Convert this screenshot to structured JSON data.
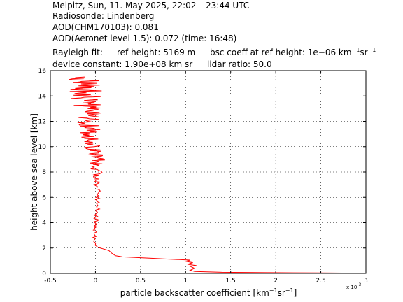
{
  "header": {
    "line1": "Melpitz, Sun, 11. May 2025, 22:02 – 23:44 UTC",
    "line2": "Radiosonde: Lindenberg",
    "line3": "AOD(CHM170103): 0.081",
    "line4": "AOD(Aeronet level 1.5): 0.072   (time: 16:48)",
    "rayleigh_label": "Rayleigh fit:",
    "ref_height": "ref height: 5169 m",
    "bsc_coeff_prefix": "bsc coeff at ref height: 1e−06 km",
    "unit_exp1": "−1",
    "unit_sr": "sr",
    "unit_exp2": "−1",
    "device_constant": "device constant: 1.90e+08 km sr",
    "lidar_ratio": "lidar ratio: 50.0"
  },
  "chart_data": {
    "type": "line",
    "xlabel_prefix": "particle backscatter coefficient [km",
    "xlabel_exp1": "−1",
    "xlabel_mid": "sr",
    "xlabel_exp2": "−1",
    "xlabel_suffix": "]",
    "ylabel": "height above sea level [km]",
    "x_multiplier_label": "x 10",
    "x_multiplier_exp": "-3",
    "xlim": [
      -0.5,
      3
    ],
    "ylim": [
      0,
      16
    ],
    "xticks": [
      -0.5,
      0,
      0.5,
      1,
      1.5,
      2,
      2.5,
      3
    ],
    "xtick_labels": [
      "-0.5",
      "0",
      "0.5",
      "1",
      "1.5",
      "2",
      "2.5",
      "3"
    ],
    "yticks": [
      0,
      2,
      4,
      6,
      8,
      10,
      12,
      14,
      16
    ],
    "ytick_labels": [
      "0",
      "2",
      "4",
      "6",
      "8",
      "10",
      "12",
      "14",
      "16"
    ],
    "grid": true,
    "series": [
      {
        "color": "#ff0000",
        "noise_from_km": 7.0,
        "points": [
          [
            3.0,
            0.02
          ],
          [
            2.2,
            0.05
          ],
          [
            1.4,
            0.09
          ],
          [
            1.1,
            0.15
          ],
          [
            1.05,
            0.25
          ],
          [
            1.1,
            0.4
          ],
          [
            1.05,
            0.55
          ],
          [
            1.12,
            0.62
          ],
          [
            1.02,
            0.72
          ],
          [
            1.08,
            0.85
          ],
          [
            1.0,
            0.95
          ],
          [
            1.05,
            1.05
          ],
          [
            0.6,
            1.2
          ],
          [
            0.3,
            1.3
          ],
          [
            0.22,
            1.4
          ],
          [
            0.18,
            1.6
          ],
          [
            0.15,
            1.8
          ],
          [
            0.08,
            1.95
          ],
          [
            0.03,
            2.05
          ],
          [
            0.0,
            2.2
          ],
          [
            0.0,
            2.5
          ],
          [
            -0.01,
            3.0
          ],
          [
            0.0,
            3.5
          ],
          [
            0.01,
            4.0
          ],
          [
            0.0,
            4.5
          ],
          [
            0.02,
            5.0
          ],
          [
            0.03,
            5.5
          ],
          [
            0.02,
            6.0
          ],
          [
            0.04,
            6.5
          ],
          [
            0.02,
            7.0
          ],
          [
            0.0,
            7.5
          ],
          [
            0.02,
            8.0
          ],
          [
            0.0,
            8.5
          ],
          [
            0.03,
            9.0
          ],
          [
            0.0,
            9.5
          ],
          [
            -0.02,
            10.0
          ],
          [
            -0.03,
            10.5
          ],
          [
            -0.05,
            11.0
          ],
          [
            -0.06,
            11.5
          ],
          [
            -0.07,
            12.0
          ],
          [
            -0.08,
            12.5
          ],
          [
            -0.1,
            13.0
          ],
          [
            -0.1,
            13.5
          ],
          [
            -0.12,
            14.0
          ],
          [
            -0.1,
            14.5
          ],
          [
            -0.12,
            15.0
          ],
          [
            -0.12,
            15.5
          ]
        ]
      }
    ]
  }
}
